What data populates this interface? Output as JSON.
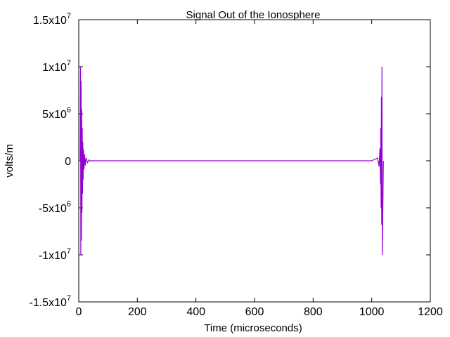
{
  "chart_data": {
    "type": "line",
    "title": "Signal Out of the Ionosphere",
    "xlabel": "Time (microseconds)",
    "ylabel": "volts/m",
    "xlim": [
      0,
      1200
    ],
    "ylim": [
      -15000000,
      15000000
    ],
    "x_ticks": [
      {
        "value": 0,
        "label": "0"
      },
      {
        "value": 200,
        "label": "200"
      },
      {
        "value": 400,
        "label": "400"
      },
      {
        "value": 600,
        "label": "600"
      },
      {
        "value": 800,
        "label": "800"
      },
      {
        "value": 1000,
        "label": "1000"
      },
      {
        "value": 1200,
        "label": "1200"
      }
    ],
    "y_ticks": [
      {
        "value": 15000000,
        "mantissa": "1.5x10",
        "exp": "7"
      },
      {
        "value": 10000000,
        "mantissa": "1x10",
        "exp": "7"
      },
      {
        "value": 5000000,
        "mantissa": "5x10",
        "exp": "6"
      },
      {
        "value": 0,
        "mantissa": "0",
        "exp": ""
      },
      {
        "value": -5000000,
        "mantissa": "-5x10",
        "exp": "6"
      },
      {
        "value": -10000000,
        "mantissa": "-1x10",
        "exp": "7"
      },
      {
        "value": -15000000,
        "mantissa": "-1.5x10",
        "exp": "7"
      }
    ],
    "grid": false,
    "series": [
      {
        "color": "#9400d3",
        "description_points": "Two decaying oscillation bursts near x=8 and x=1035, near-zero baseline between",
        "x": [
          0,
          5,
          6,
          7,
          8,
          9,
          10,
          11,
          12,
          13,
          14,
          15,
          16,
          18,
          20,
          22,
          25,
          30,
          35,
          40,
          45,
          50,
          100,
          200,
          400,
          600,
          800,
          1000,
          1020,
          1025,
          1028,
          1030,
          1031,
          1032,
          1033,
          1034,
          1035,
          1036,
          1040
        ],
        "y": [
          0,
          0,
          10000000,
          -10000000,
          8500000,
          -8500000,
          5500000,
          -5500000,
          3500000,
          -3500000,
          2000000,
          -2000000,
          1200000,
          -900000,
          700000,
          -500000,
          300000,
          -200000,
          100000,
          -50000,
          20000,
          0,
          0,
          0,
          0,
          0,
          0,
          0,
          300000,
          -600000,
          1300000,
          -2500000,
          3500000,
          -5000000,
          6800000,
          -6800000,
          10000000,
          -10000000,
          0
        ]
      }
    ]
  }
}
